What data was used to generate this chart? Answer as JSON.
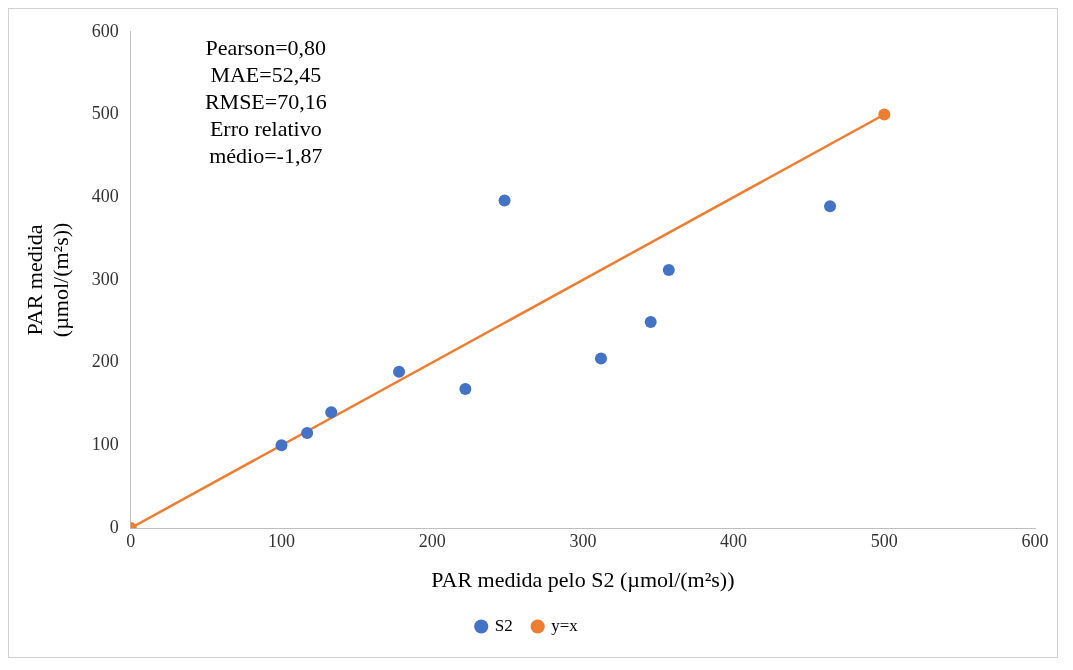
{
  "chart_data": {
    "type": "scatter",
    "xlabel": "PAR medida pelo S2 (µmol/(m²s))",
    "ylabel": "PAR medida (µmol/(m²s))",
    "annotations": [
      "Pearson=0,80",
      "MAE=52,45",
      "RMSE=70,16",
      "Erro relativo médio=-1,87"
    ],
    "series": [
      {
        "name": "S2",
        "color": "#4472c4",
        "type": "scatter",
        "marker": "circle",
        "x": [
          100,
          117,
          133,
          178,
          222,
          248,
          312,
          345,
          357,
          464
        ],
        "values": [
          100,
          115,
          140,
          189,
          168,
          396,
          205,
          249,
          312,
          389
        ]
      },
      {
        "name": "y=x",
        "color": "#ed7d31",
        "type": "line",
        "marker": "circle",
        "line_style": "solid",
        "x": [
          0,
          500
        ],
        "values": [
          0,
          500
        ]
      }
    ],
    "xlim": [
      0,
      600
    ],
    "xticks": [
      0,
      100,
      200,
      300,
      400,
      500,
      600
    ],
    "ylim": [
      0,
      600
    ],
    "yticks": [
      0,
      100,
      200,
      300,
      400,
      500,
      600
    ],
    "grid": false,
    "legend": "bottom"
  }
}
